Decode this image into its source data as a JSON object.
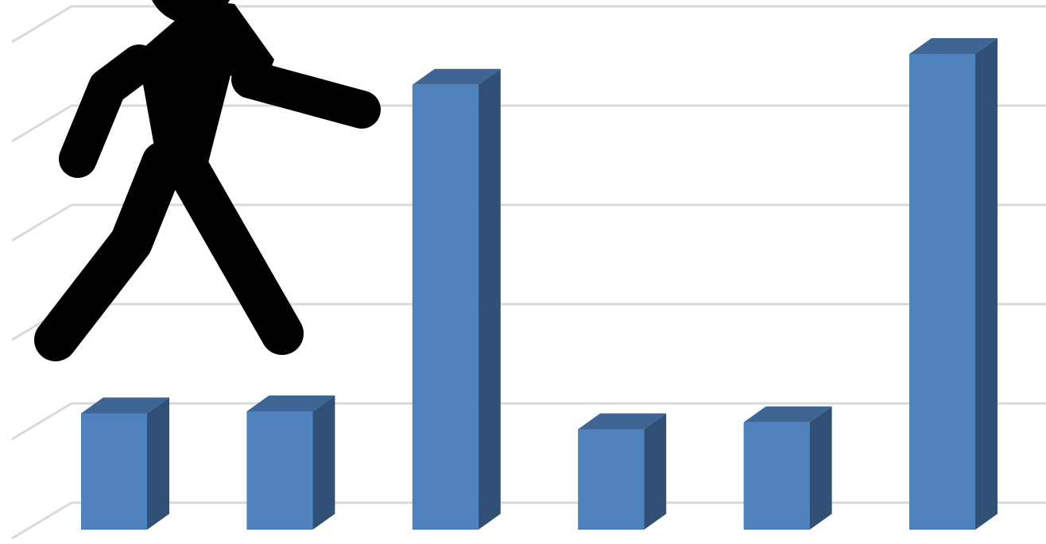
{
  "chart_data": {
    "type": "bar",
    "categories": [
      null,
      null,
      null,
      null,
      null,
      null
    ],
    "values": [
      1.06,
      1.08,
      4.37,
      0.9,
      0.97,
      4.68
    ],
    "color": "#4f81bd",
    "ylim": [
      0,
      5
    ],
    "yticks": [
      0,
      1,
      2,
      3,
      4,
      5
    ],
    "grid": true
  }
}
